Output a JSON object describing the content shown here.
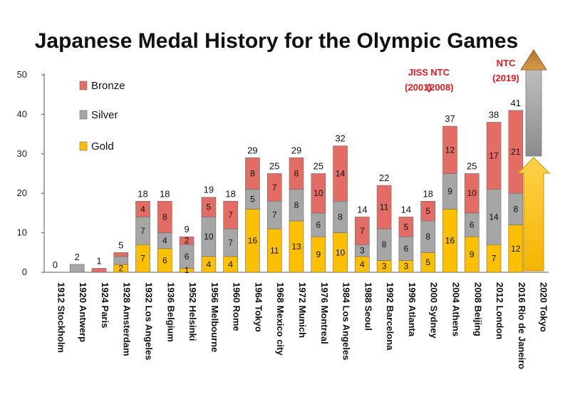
{
  "chart_data": {
    "type": "bar",
    "stacked": true,
    "title": "Japanese Medal History for the Olympic Games",
    "ylim": [
      0,
      50
    ],
    "yticks": [
      0,
      10,
      20,
      30,
      40,
      50
    ],
    "categories": [
      "1912 Stockholm",
      "1920 Antwerp",
      "1924 Paris",
      "1928 Amsterdam",
      "1932 Los Angeles",
      "1936 Belgium",
      "1952 Helsinki",
      "1956 Melbourne",
      "1960 Rome",
      "1964 Tokyo",
      "1968 Mexico city",
      "1972 Munich",
      "1976 Montreal",
      "1984 Los Angeles",
      "1988 Seoul",
      "1992 Barcelona",
      "1996 Atlanta",
      "2000 Sydney",
      "2004 Athens",
      "2008 Beijing",
      "2012 London",
      "2016 Rio de Janeiro",
      "2020 Tokyo"
    ],
    "series": [
      {
        "name": "Gold",
        "color": "#fcc000",
        "values": [
          0,
          0,
          0,
          2,
          7,
          6,
          1,
          4,
          4,
          16,
          11,
          13,
          9,
          10,
          4,
          3,
          3,
          5,
          16,
          9,
          7,
          12,
          null
        ]
      },
      {
        "name": "Silver",
        "color": "#a6a6a6",
        "values": [
          0,
          2,
          0,
          2,
          7,
          4,
          6,
          10,
          7,
          5,
          7,
          8,
          6,
          8,
          3,
          8,
          6,
          8,
          9,
          6,
          14,
          8,
          null
        ]
      },
      {
        "name": "Bronze",
        "color": "#e36c64",
        "values": [
          0,
          0,
          1,
          1,
          4,
          8,
          2,
          5,
          7,
          8,
          7,
          8,
          10,
          14,
          7,
          11,
          5,
          5,
          12,
          10,
          17,
          21,
          null
        ]
      }
    ],
    "segment_labels": {
      "Gold": [
        "",
        "",
        "",
        "2",
        "7",
        "6",
        "1",
        "4",
        "4",
        "16",
        "11",
        "13",
        "9",
        "10",
        "4",
        "3",
        "3",
        "5",
        "16",
        "9",
        "7",
        "12",
        ""
      ],
      "Silver": [
        "",
        "",
        "",
        "",
        "7",
        "4",
        "6",
        "10",
        "7",
        "5",
        "7",
        "8",
        "6",
        "8",
        "3",
        "8",
        "6",
        "8",
        "9",
        "6",
        "14",
        "8",
        ""
      ],
      "Bronze": [
        "",
        "",
        "",
        "",
        "4",
        "8",
        "2",
        "5",
        "7",
        "8",
        "7",
        "8",
        "10",
        "14",
        "7",
        "11",
        "5",
        "5",
        "12",
        "10",
        "17",
        "21",
        ""
      ]
    },
    "totals": [
      "0",
      "2",
      "1",
      "5",
      "18",
      "18",
      "9",
      "19",
      "18",
      "29",
      "25",
      "29",
      "25",
      "32",
      "14",
      "22",
      "14",
      "18",
      "37",
      "25",
      "38",
      "41",
      ""
    ],
    "legend": [
      "Bronze",
      "Silver",
      "Gold"
    ],
    "annotations": [
      {
        "category": "1996 Atlanta",
        "lines": [
          "JISS",
          "(2001)"
        ]
      },
      {
        "category": "2000 Sydney",
        "lines": [
          "NTC",
          "(2008)"
        ]
      },
      {
        "category": "2012 London",
        "lines": [
          "NTC",
          "(2019)"
        ]
      }
    ],
    "projection": {
      "category": "2020 Tokyo",
      "note": "upward arrow indicating expected increase"
    }
  }
}
